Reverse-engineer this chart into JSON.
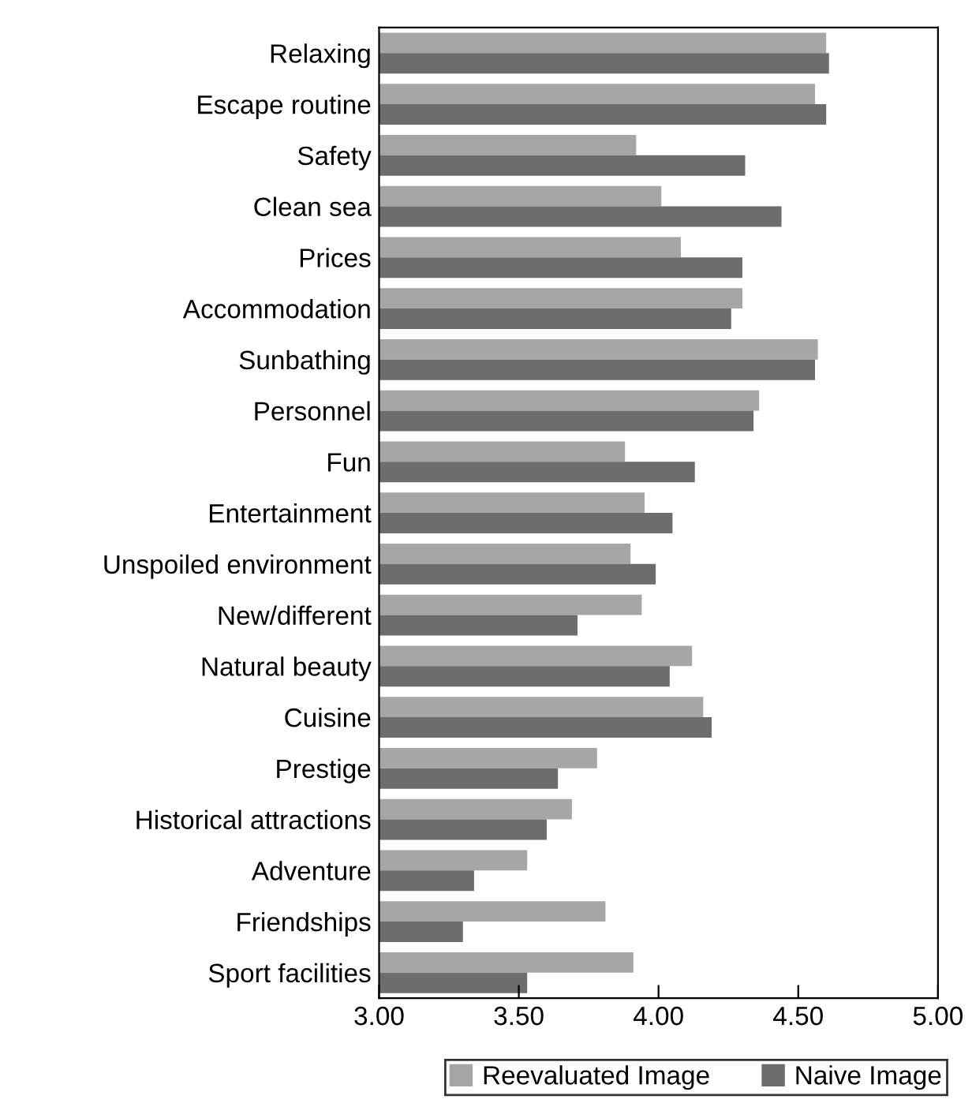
{
  "chart_data": {
    "type": "bar",
    "orientation": "horizontal",
    "categories": [
      "Relaxing",
      "Escape routine",
      "Safety",
      "Clean sea",
      "Prices",
      "Accommodation",
      "Sunbathing",
      "Personnel",
      "Fun",
      "Entertainment",
      "Unspoiled environment",
      "New/different",
      "Natural beauty",
      "Cuisine",
      "Prestige",
      "Historical attractions",
      "Adventure",
      "Friendships",
      "Sport facilities"
    ],
    "series": [
      {
        "name": "Reevaluated Image",
        "color": "#a6a6a6",
        "values": [
          4.6,
          4.56,
          3.92,
          4.01,
          4.08,
          4.3,
          4.57,
          4.36,
          3.88,
          3.95,
          3.9,
          3.94,
          4.12,
          4.16,
          3.78,
          3.69,
          3.53,
          3.81,
          3.91
        ]
      },
      {
        "name": "Naive Image",
        "color": "#6d6d6d",
        "values": [
          4.61,
          4.6,
          4.31,
          4.44,
          4.3,
          4.26,
          4.56,
          4.34,
          4.13,
          4.05,
          3.99,
          3.71,
          4.04,
          4.19,
          3.64,
          3.6,
          3.34,
          3.3,
          3.53
        ]
      }
    ],
    "xlim": [
      3.0,
      5.0
    ],
    "xticks": [
      {
        "value": 3.0,
        "label": "3.00"
      },
      {
        "value": 3.5,
        "label": "3.50"
      },
      {
        "value": 4.0,
        "label": "4.00"
      },
      {
        "value": 4.5,
        "label": "4.50"
      },
      {
        "value": 5.0,
        "label": "5.00"
      }
    ],
    "legend": "bottom",
    "grid": false
  }
}
